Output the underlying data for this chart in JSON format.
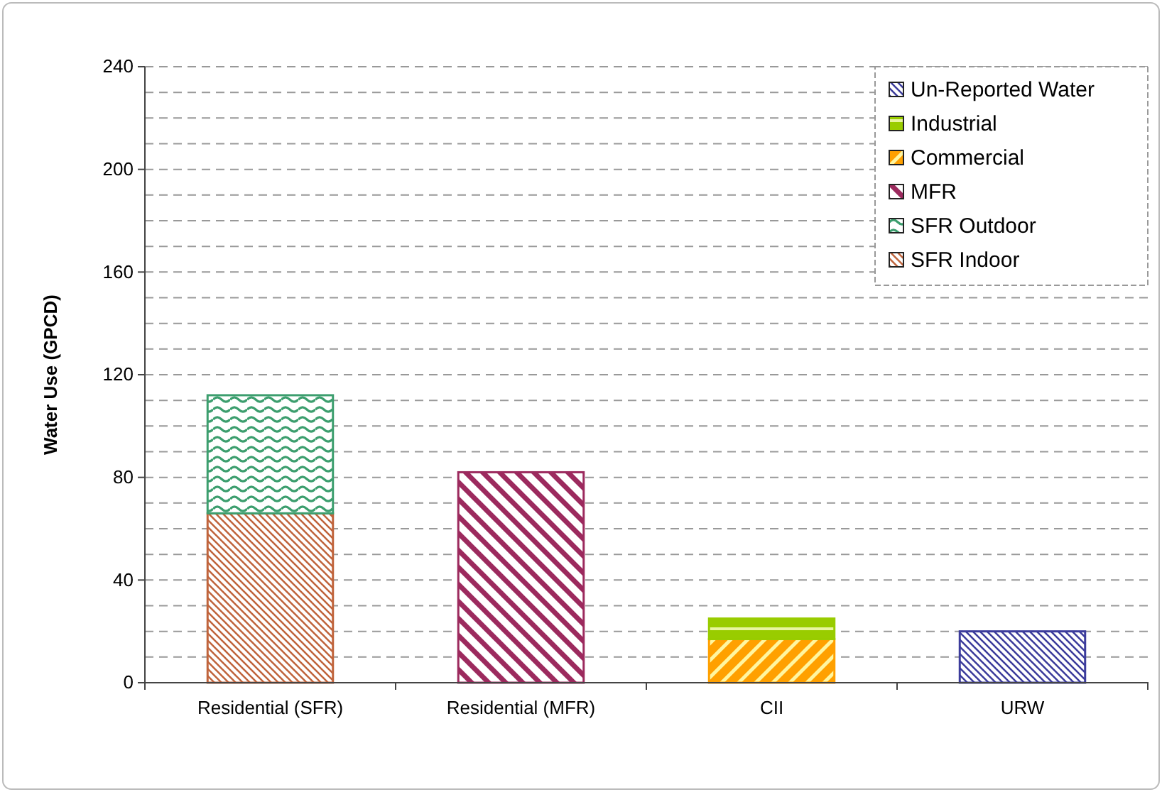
{
  "chart_data": {
    "type": "bar",
    "stacked": true,
    "ylabel": "Water Use (GPCD)",
    "categories": [
      "Residential (SFR)",
      "Residential (MFR)",
      "CII",
      "URW"
    ],
    "series": [
      {
        "name": "SFR Indoor",
        "color": "#c0643c",
        "values": [
          66,
          null,
          null,
          null
        ]
      },
      {
        "name": "SFR Outdoor",
        "color": "#3c9e6e",
        "values": [
          46,
          null,
          null,
          null
        ]
      },
      {
        "name": "MFR",
        "color": "#9c2a5e",
        "values": [
          null,
          82,
          null,
          null
        ]
      },
      {
        "name": "Commercial",
        "color": "#ffa000",
        "values": [
          null,
          null,
          17,
          null
        ]
      },
      {
        "name": "Industrial",
        "color": "#99cc00",
        "values": [
          null,
          null,
          8,
          null
        ]
      },
      {
        "name": "Un-Reported Water",
        "color": "#3c3c9c",
        "values": [
          null,
          null,
          null,
          20
        ]
      }
    ],
    "ylim": [
      0,
      240
    ],
    "yticks": [
      0,
      {
        "value": 10,
        "label": null
      },
      {
        "value": 20,
        "label": null
      },
      {
        "value": 30,
        "label": null
      },
      40,
      {
        "value": 50,
        "label": null
      },
      {
        "value": 60,
        "label": null
      },
      {
        "value": 70,
        "label": null
      },
      80,
      {
        "value": 90,
        "label": null
      },
      {
        "value": 100,
        "label": null
      },
      {
        "value": 110,
        "label": null
      },
      120,
      {
        "value": 130,
        "label": null
      },
      {
        "value": 140,
        "label": null
      },
      {
        "value": 150,
        "label": null
      },
      160,
      {
        "value": 170,
        "label": null
      },
      {
        "value": 180,
        "label": null
      },
      {
        "value": 190,
        "label": null
      },
      200,
      {
        "value": 210,
        "label": null
      },
      {
        "value": 220,
        "label": null
      },
      {
        "value": 230,
        "label": null
      },
      240
    ],
    "grid": "y",
    "legend": "top right"
  }
}
